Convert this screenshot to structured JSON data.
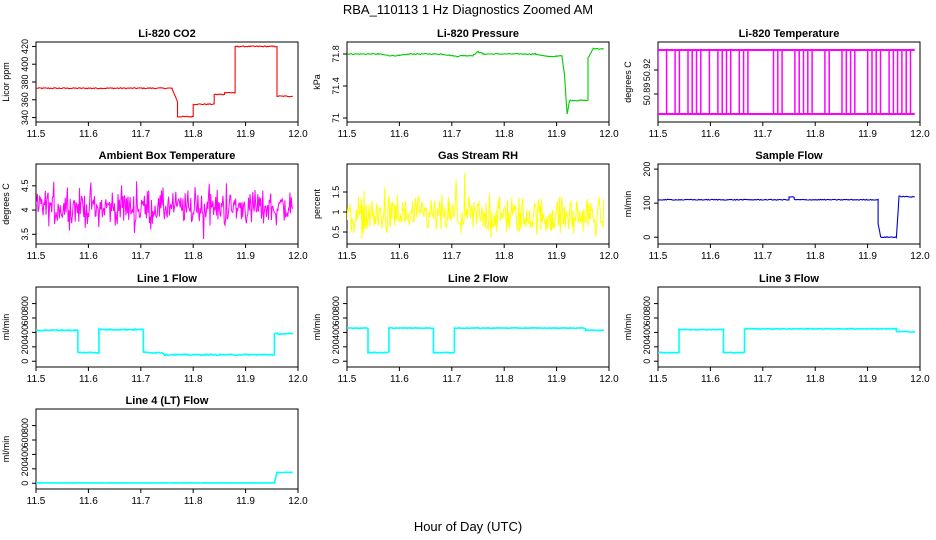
{
  "figure": {
    "title": "RBA_110113  1 Hz Diagnostics Zoomed AM",
    "xlabel": "Hour of Day (UTC)"
  },
  "chart_data": [
    {
      "type": "line",
      "title": "Li-820 CO2",
      "ylabel": "Licor ppm",
      "color": "#ff0000",
      "xlim": [
        11.5,
        12.0
      ],
      "x_ticks": [
        "11.5",
        "11.6",
        "11.7",
        "11.8",
        "11.9",
        "12.0"
      ],
      "ylim": [
        335,
        425
      ],
      "y_ticks": [
        340,
        360,
        380,
        400,
        420
      ],
      "noise": 0.6,
      "series": [
        {
          "x": [
            11.5,
            11.76,
            11.76,
            11.77,
            11.77,
            11.8,
            11.8,
            11.84,
            11.84,
            11.86,
            11.86,
            11.88,
            11.88,
            11.96,
            11.96,
            11.99
          ],
          "y": [
            373,
            373,
            372,
            358,
            341,
            341,
            355,
            355,
            366,
            366,
            368,
            368,
            420,
            420,
            364,
            364
          ]
        }
      ]
    },
    {
      "type": "line",
      "title": "Li-820 Pressure",
      "ylabel": "kPa",
      "color": "#00cc00",
      "xlim": [
        11.5,
        12.0
      ],
      "x_ticks": [
        "11.5",
        "11.6",
        "11.7",
        "11.8",
        "11.9",
        "12.0"
      ],
      "ylim": [
        70.95,
        71.95
      ],
      "y_ticks": [
        71.0,
        71.4,
        71.8
      ],
      "noise": 0.006,
      "series": [
        {
          "x": [
            11.5,
            11.56,
            11.58,
            11.6,
            11.62,
            11.68,
            11.71,
            11.72,
            11.74,
            11.75,
            11.76,
            11.86,
            11.88,
            11.9,
            11.91,
            11.915,
            11.92,
            11.925,
            11.96,
            11.96,
            11.97,
            11.99
          ],
          "y": [
            71.8,
            71.8,
            71.78,
            71.78,
            71.8,
            71.8,
            71.77,
            71.78,
            71.78,
            71.83,
            71.8,
            71.8,
            71.77,
            71.77,
            71.78,
            71.55,
            71.05,
            71.22,
            71.22,
            71.75,
            71.87,
            71.86
          ]
        }
      ]
    },
    {
      "type": "line",
      "title": "Li-820 Temperature",
      "ylabel": "degrees C",
      "color": "#ff00ff",
      "xlim": [
        11.5,
        12.0
      ],
      "x_ticks": [
        "11.5",
        "11.6",
        "11.7",
        "11.8",
        "11.9",
        "12.0"
      ],
      "ylim": [
        50.855,
        50.955
      ],
      "y_ticks": [
        50.89,
        50.92
      ],
      "levels": [
        50.865,
        50.945
      ],
      "series": [
        {
          "name": "",
          "x": [
            11.5,
            11.99
          ],
          "y": [
            50.865,
            50.945
          ]
        }
      ]
    },
    {
      "type": "line",
      "title": "Ambient Box Temperature",
      "ylabel": "degrees C",
      "color": "#ff00ff",
      "xlim": [
        11.5,
        12.0
      ],
      "x_ticks": [
        "11.5",
        "11.6",
        "11.7",
        "11.8",
        "11.9",
        "12.0"
      ],
      "ylim": [
        3.3,
        4.95
      ],
      "y_ticks": [
        3.5,
        4.0,
        4.5
      ],
      "noise_band": [
        3.5,
        4.7
      ],
      "series": [
        {
          "x": [
            11.5,
            11.99
          ],
          "y": [
            4.05,
            4.05
          ]
        }
      ]
    },
    {
      "type": "line",
      "title": "Gas Stream RH",
      "ylabel": "percent",
      "color": "#ffff00",
      "xlim": [
        11.5,
        12.0
      ],
      "x_ticks": [
        "11.5",
        "11.6",
        "11.7",
        "11.8",
        "11.9",
        "12.0"
      ],
      "ylim": [
        0.2,
        2.2
      ],
      "y_ticks": [
        0.5,
        1.0,
        1.5
      ],
      "noise_band": [
        0.3,
        1.9
      ],
      "series": [
        {
          "x": [
            11.5,
            11.99
          ],
          "y": [
            0.9,
            0.9
          ]
        }
      ]
    },
    {
      "type": "line",
      "title": "Sample Flow",
      "ylabel": "ml/min",
      "color": "#0000cc",
      "xlim": [
        11.5,
        12.0
      ],
      "x_ticks": [
        "11.5",
        "11.6",
        "11.7",
        "11.8",
        "11.9",
        "12.0"
      ],
      "ylim": [
        -20,
        215
      ],
      "y_ticks": [
        0,
        100,
        200
      ],
      "noise": 1.2,
      "series": [
        {
          "x": [
            11.5,
            11.75,
            11.75,
            11.76,
            11.76,
            11.92,
            11.92,
            11.925,
            11.955,
            11.96,
            11.99
          ],
          "y": [
            110,
            110,
            118,
            118,
            110,
            110,
            40,
            0,
            0,
            120,
            118
          ]
        }
      ]
    },
    {
      "type": "line",
      "title": "Line 1 Flow",
      "ylabel": "ml/min",
      "color": "#00ffff",
      "xlim": [
        11.5,
        12.0
      ],
      "x_ticks": [
        "11.5",
        "11.6",
        "11.7",
        "11.8",
        "11.9",
        "12.0"
      ],
      "ylim": [
        -80,
        1030
      ],
      "y_ticks": [
        0,
        200,
        400,
        600,
        800
      ],
      "noise": 8,
      "series": [
        {
          "x": [
            11.5,
            11.58,
            11.58,
            11.62,
            11.62,
            11.705,
            11.705,
            11.74,
            11.745,
            11.955,
            11.955,
            11.99
          ],
          "y": [
            430,
            430,
            120,
            120,
            440,
            440,
            120,
            120,
            90,
            90,
            380,
            380
          ]
        }
      ]
    },
    {
      "type": "line",
      "title": "Line 2 Flow",
      "ylabel": "ml/min",
      "color": "#00ffff",
      "xlim": [
        11.5,
        12.0
      ],
      "x_ticks": [
        "11.5",
        "11.6",
        "11.7",
        "11.8",
        "11.9",
        "12.0"
      ],
      "ylim": [
        -80,
        1030
      ],
      "y_ticks": [
        0,
        200,
        400,
        600,
        800
      ],
      "noise": 5,
      "series": [
        {
          "x": [
            11.5,
            11.54,
            11.54,
            11.58,
            11.58,
            11.665,
            11.665,
            11.705,
            11.705,
            11.955,
            11.955,
            11.99
          ],
          "y": [
            460,
            460,
            120,
            120,
            460,
            460,
            120,
            120,
            460,
            460,
            430,
            430
          ]
        }
      ]
    },
    {
      "type": "line",
      "title": "Line 3 Flow",
      "ylabel": "ml/min",
      "color": "#00ffff",
      "xlim": [
        11.5,
        12.0
      ],
      "x_ticks": [
        "11.5",
        "11.6",
        "11.7",
        "11.8",
        "11.9",
        "12.0"
      ],
      "ylim": [
        -80,
        1030
      ],
      "y_ticks": [
        0,
        200,
        400,
        600,
        800
      ],
      "noise": 5,
      "series": [
        {
          "x": [
            11.5,
            11.54,
            11.54,
            11.625,
            11.625,
            11.665,
            11.665,
            11.955,
            11.955,
            11.99
          ],
          "y": [
            120,
            120,
            440,
            440,
            120,
            120,
            450,
            450,
            410,
            410
          ]
        }
      ]
    },
    {
      "type": "line",
      "title": "Line 4 (LT) Flow",
      "ylabel": "ml/min",
      "color": "#00ffff",
      "xlim": [
        11.5,
        12.0
      ],
      "x_ticks": [
        "11.5",
        "11.6",
        "11.7",
        "11.8",
        "11.9",
        "12.0"
      ],
      "ylim": [
        -80,
        1030
      ],
      "y_ticks": [
        0,
        200,
        400,
        600,
        800
      ],
      "noise": 2,
      "series": [
        {
          "x": [
            11.5,
            11.955,
            11.96,
            11.99
          ],
          "y": [
            5,
            5,
            150,
            150
          ]
        }
      ]
    }
  ]
}
